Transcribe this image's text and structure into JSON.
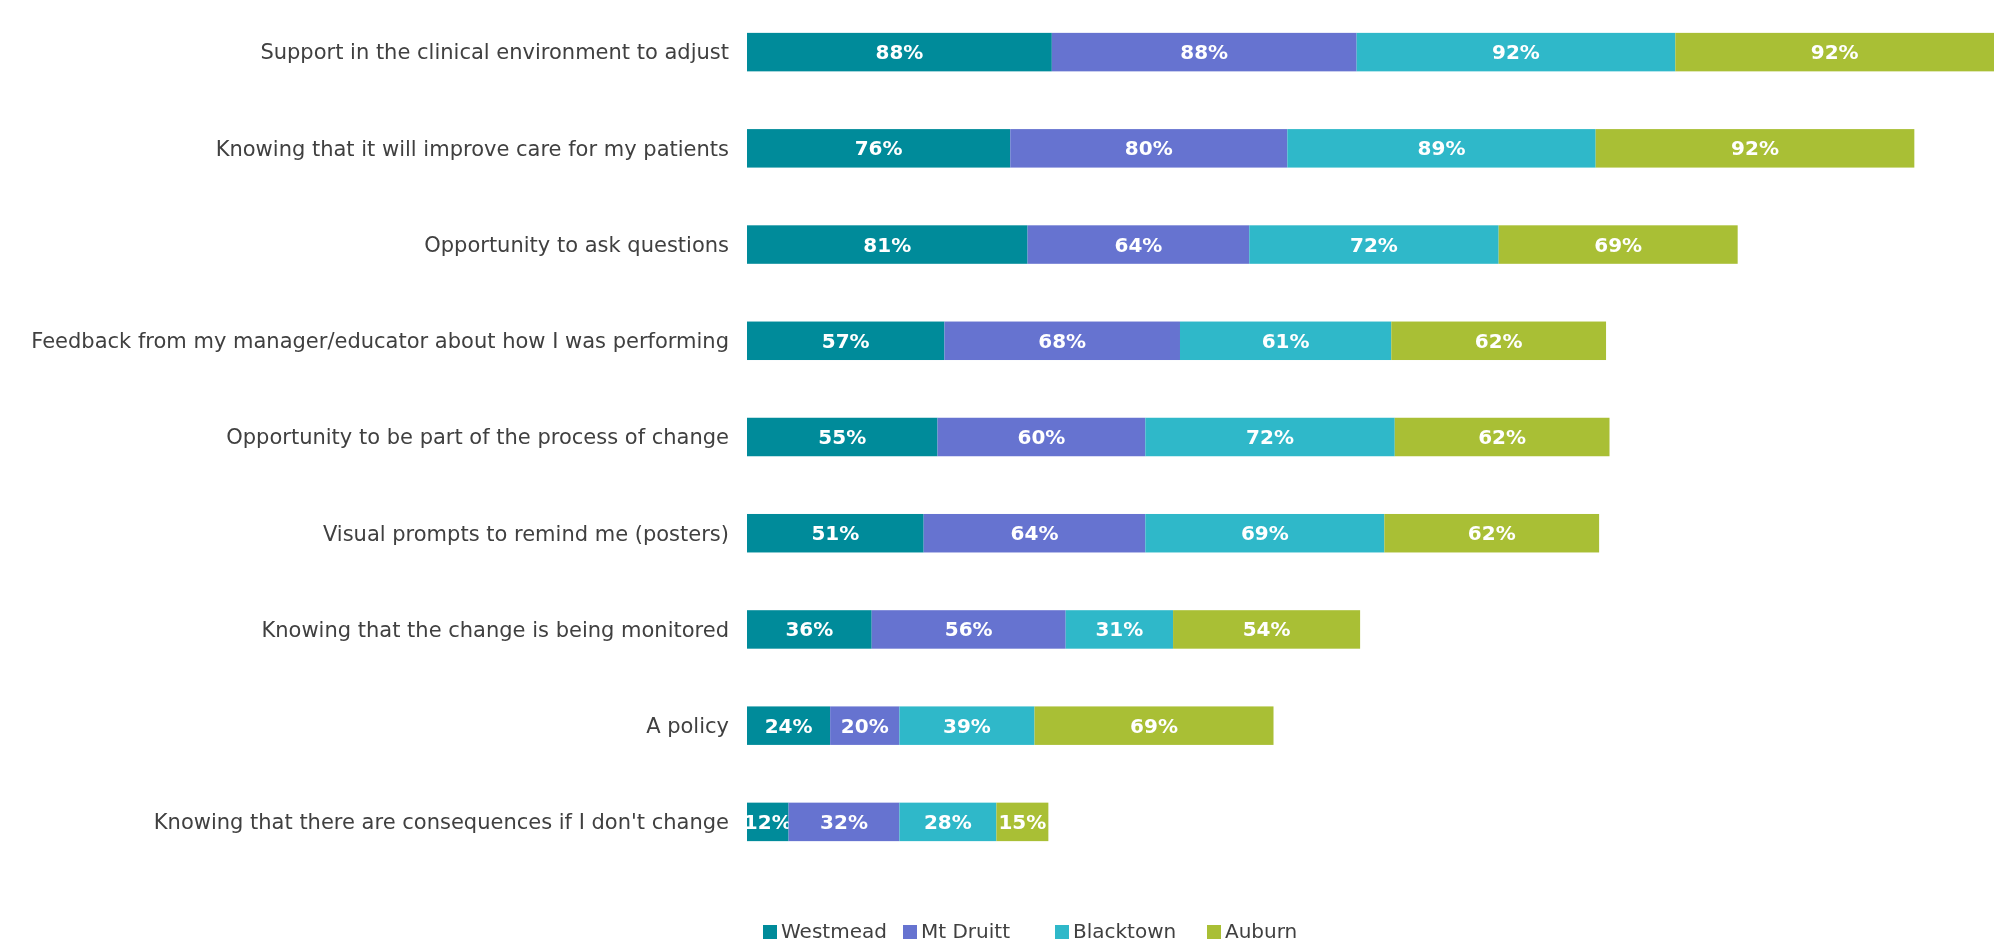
{
  "chart_data": {
    "type": "bar",
    "orientation": "horizontal",
    "stacked": true,
    "legend": "bottom",
    "categories": [
      "Support in the clinical environment to adjust",
      "Knowing that it will improve care for my patients",
      "Opportunity to ask questions",
      "Feedback from my manager/educator about how I was performing",
      "Opportunity to be part of the process of change",
      "Visual prompts to remind me (posters)",
      "Knowing that the change is being monitored",
      "A policy",
      "Knowing that there are consequences if I don't change"
    ],
    "series": [
      {
        "name": "Westmead",
        "color": "#008b9a",
        "values": [
          88,
          76,
          81,
          57,
          55,
          51,
          36,
          24,
          12
        ],
        "value_labels": [
          "88%",
          "76%",
          "81%",
          "57%",
          "55%",
          "51%",
          "36%",
          "24%",
          "12%"
        ]
      },
      {
        "name": "Mt Druitt",
        "color": "#6673d0",
        "values": [
          88,
          80,
          64,
          68,
          60,
          64,
          56,
          20,
          32
        ],
        "value_labels": [
          "88%",
          "80%",
          "64%",
          "68%",
          "60%",
          "64%",
          "56%",
          "20%",
          "32%"
        ]
      },
      {
        "name": "Blacktown",
        "color": "#2fb8c9",
        "values": [
          92,
          89,
          72,
          61,
          72,
          69,
          31,
          39,
          28
        ],
        "value_labels": [
          "92%",
          "89%",
          "72%",
          "61%",
          "72%",
          "69%",
          "31%",
          "39%",
          "28%"
        ]
      },
      {
        "name": "Auburn",
        "color": "#a9bf35",
        "values": [
          92,
          92,
          69,
          62,
          62,
          62,
          54,
          69,
          15
        ],
        "value_labels": [
          "92%",
          "92%",
          "69%",
          "62%",
          "62%",
          "62%",
          "54%",
          "69%",
          "15%"
        ]
      }
    ]
  }
}
